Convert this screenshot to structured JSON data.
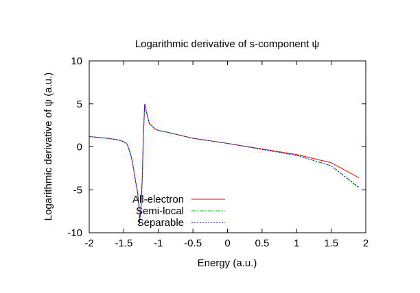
{
  "chart_data": {
    "type": "line",
    "title": "Logarithmic derivative of s-component ψ",
    "xlabel": "Energy (a.u.)",
    "ylabel": "Logarithmic derivative of ψ (a.u.)",
    "xlim": [
      -2,
      2
    ],
    "ylim": [
      -10,
      10
    ],
    "xticks": [
      -2,
      -1.5,
      -1,
      -0.5,
      0,
      0.5,
      1,
      1.5,
      2
    ],
    "xtick_labels": [
      "-2",
      "-1.5",
      "-1",
      "-0.5",
      "0",
      "0.5",
      "1",
      "1.5",
      "2"
    ],
    "yticks": [
      -10,
      -5,
      0,
      5,
      10
    ],
    "ytick_labels": [
      "-10",
      "-5",
      "0",
      "5",
      "10"
    ],
    "grid": false,
    "legend_position": "bottom-left",
    "series": [
      {
        "name": "All-electron",
        "color": "#ff0000",
        "dash": "",
        "x": [
          -2,
          -1.8,
          -1.6,
          -1.5,
          -1.45,
          -1.4,
          -1.37,
          -1.33,
          -1.3,
          -1.28,
          -1.27,
          -1.275,
          -1.25,
          -1.23,
          -1.22,
          -1.21,
          -1.2,
          -1.196,
          -1.18,
          -1.13,
          -1.05,
          -1.0,
          -0.9,
          -0.5,
          0,
          0.5,
          1,
          1.5,
          1.9
        ],
        "y": [
          1.2,
          1.05,
          0.85,
          0.6,
          0.3,
          -0.9,
          -2,
          -4,
          -5.3,
          -7,
          -8.5,
          -9,
          -7,
          -3,
          0.5,
          2.5,
          4.7,
          5.0,
          4.3,
          2.7,
          2.1,
          1.9,
          1.75,
          1.0,
          0.4,
          -0.25,
          -0.9,
          -1.85,
          -3.6
        ]
      },
      {
        "name": "Semi-local",
        "color": "#00cc00",
        "dash": "6,2,2,2",
        "x": [
          -2,
          -1.8,
          -1.6,
          -1.5,
          -1.45,
          -1.4,
          -1.37,
          -1.33,
          -1.3,
          -1.28,
          -1.27,
          -1.275,
          -1.25,
          -1.23,
          -1.22,
          -1.21,
          -1.2,
          -1.196,
          -1.18,
          -1.13,
          -1.05,
          -1.0,
          -0.9,
          -0.5,
          0,
          0.5,
          1,
          1.5,
          1.9
        ],
        "y": [
          1.2,
          1.05,
          0.85,
          0.6,
          0.3,
          -0.9,
          -2,
          -4,
          -5.3,
          -7,
          -8.5,
          -9,
          -7,
          -3,
          0.5,
          2.5,
          4.7,
          5.0,
          4.3,
          2.7,
          2.1,
          1.9,
          1.75,
          1.0,
          0.4,
          -0.3,
          -1.0,
          -2.2,
          -4.8
        ]
      },
      {
        "name": "Separable",
        "color": "#0000ff",
        "dash": "2,2",
        "x": [
          -2,
          -1.8,
          -1.6,
          -1.5,
          -1.45,
          -1.4,
          -1.37,
          -1.33,
          -1.3,
          -1.28,
          -1.27,
          -1.275,
          -1.25,
          -1.23,
          -1.22,
          -1.21,
          -1.2,
          -1.196,
          -1.18,
          -1.13,
          -1.05,
          -1.0,
          -0.9,
          -0.5,
          0,
          0.5,
          1,
          1.5,
          1.9
        ],
        "y": [
          1.2,
          1.05,
          0.85,
          0.6,
          0.3,
          -0.9,
          -2,
          -4,
          -5.3,
          -7,
          -8.5,
          -9,
          -7,
          -3,
          0.5,
          2.5,
          4.7,
          5.0,
          4.3,
          2.7,
          2.1,
          1.9,
          1.75,
          1.0,
          0.4,
          -0.3,
          -1.0,
          -2.2,
          -4.7
        ]
      }
    ]
  }
}
